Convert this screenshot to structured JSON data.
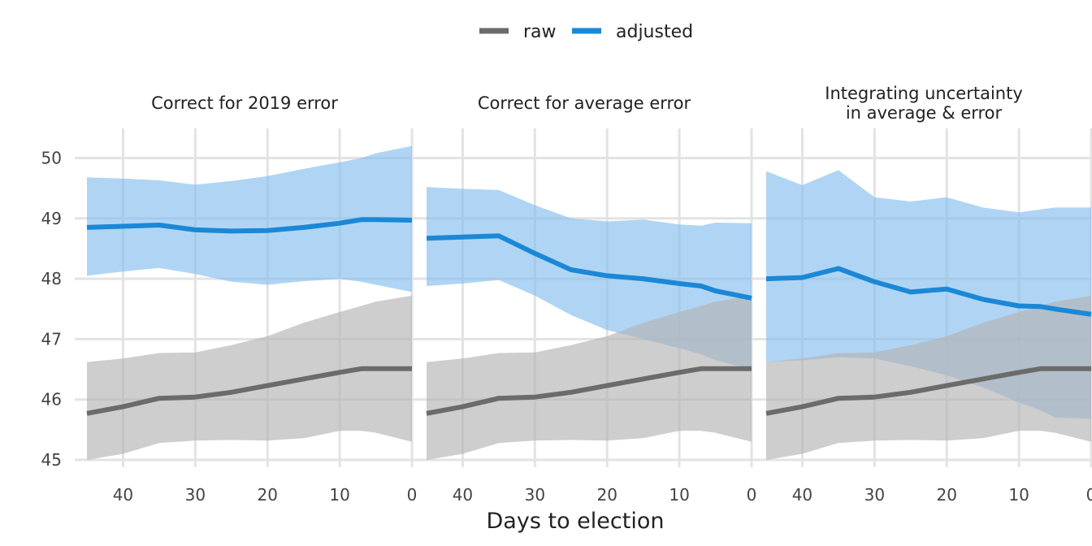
{
  "colors": {
    "raw": "#6b6b6b",
    "raw_band": "#b3b3b3",
    "adjusted": "#1a88d6",
    "adjusted_band": "#85bfee",
    "grid": "#e3e3e3"
  },
  "legend": [
    {
      "key": "raw",
      "label": "raw"
    },
    {
      "key": "adjusted",
      "label": "adjusted"
    }
  ],
  "chart_data": {
    "type": "line",
    "xlabel": "Days to election",
    "xlim": [
      46,
      0
    ],
    "ylim": [
      45,
      50
    ],
    "x_ticks": [
      40,
      30,
      20,
      10,
      0
    ],
    "y_ticks": [
      45,
      46,
      47,
      48,
      49,
      50
    ],
    "x": [
      45,
      40,
      35,
      30,
      25,
      20,
      15,
      10,
      7,
      5,
      0
    ],
    "grid": true,
    "legend_position": "top",
    "raw": {
      "name": "raw",
      "values": [
        45.77,
        45.88,
        46.02,
        46.04,
        46.12,
        46.23,
        46.34,
        46.45,
        46.51,
        46.51,
        46.51
      ],
      "lower": [
        45.0,
        45.1,
        45.28,
        45.32,
        45.33,
        45.32,
        45.36,
        45.48,
        45.48,
        45.45,
        45.3
      ],
      "upper": [
        46.62,
        46.68,
        46.77,
        46.78,
        46.9,
        47.05,
        47.27,
        47.45,
        47.55,
        47.62,
        47.72
      ]
    },
    "panels": [
      {
        "title": "Correct for 2019 error",
        "adjusted": {
          "name": "adjusted",
          "values": [
            48.85,
            48.87,
            48.89,
            48.81,
            48.79,
            48.8,
            48.85,
            48.92,
            48.98,
            48.98,
            48.97
          ],
          "lower": [
            48.05,
            48.12,
            48.18,
            48.08,
            47.95,
            47.9,
            47.96,
            48.0,
            47.95,
            47.9,
            47.78
          ],
          "upper": [
            49.68,
            49.66,
            49.63,
            49.56,
            49.62,
            49.7,
            49.82,
            49.93,
            50.0,
            50.08,
            50.2
          ]
        }
      },
      {
        "title": "Correct for average error",
        "adjusted": {
          "name": "adjusted",
          "values": [
            48.67,
            48.69,
            48.71,
            48.42,
            48.15,
            48.05,
            48.0,
            47.92,
            47.88,
            47.8,
            47.68
          ],
          "lower": [
            47.88,
            47.92,
            47.98,
            47.72,
            47.4,
            47.15,
            47.0,
            46.85,
            46.75,
            46.65,
            46.5
          ],
          "upper": [
            49.52,
            49.49,
            49.47,
            49.22,
            49.0,
            48.95,
            48.98,
            48.9,
            48.88,
            48.93,
            48.92
          ]
        }
      },
      {
        "title": "Integrating uncertainty in average & error",
        "title_lines": [
          "Integrating uncertainty",
          "in average & error"
        ],
        "adjusted": {
          "name": "adjusted",
          "values": [
            48.0,
            48.02,
            48.17,
            47.95,
            47.78,
            47.83,
            47.66,
            47.55,
            47.54,
            47.5,
            47.41
          ],
          "lower": [
            46.62,
            46.65,
            46.7,
            46.68,
            46.55,
            46.4,
            46.2,
            45.95,
            45.82,
            45.7,
            45.68
          ],
          "upper": [
            49.78,
            49.55,
            49.8,
            49.35,
            49.28,
            49.35,
            49.18,
            49.1,
            49.15,
            49.18,
            49.18
          ]
        }
      }
    ]
  }
}
